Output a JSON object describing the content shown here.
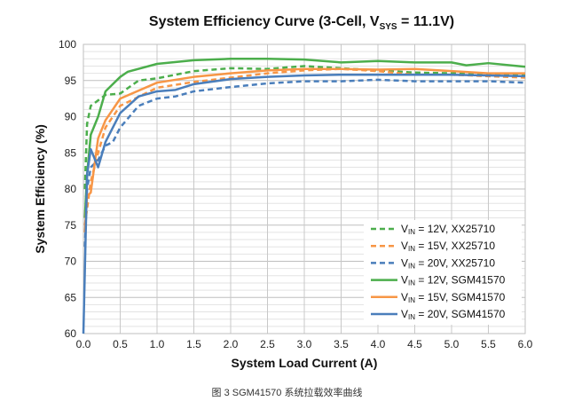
{
  "chart_data": {
    "type": "line",
    "title_main": "System Efficiency Curve (3-Cell, V",
    "title_sub": "SYS",
    "title_tail": " = 11.1V)",
    "xlabel": "System Load Current (A)",
    "ylabel": "System Efficiency (%)",
    "xlim": [
      0,
      6.0
    ],
    "ylim": [
      60,
      100
    ],
    "xticks": [
      "0.0",
      "0.5",
      "1.0",
      "1.5",
      "2.0",
      "2.5",
      "3.0",
      "3.5",
      "4.0",
      "4.5",
      "5.0",
      "5.5",
      "6.0"
    ],
    "yticks": [
      "60",
      "65",
      "70",
      "75",
      "80",
      "85",
      "90",
      "95",
      "100"
    ],
    "grid": true,
    "legend_position": "bottom-right",
    "series": [
      {
        "name_prefix": "V",
        "name_sub": "IN",
        "name_rest": " = 12V, XX25710",
        "color": "#4cae4c",
        "dashed": true,
        "x": [
          0.02,
          0.05,
          0.1,
          0.3,
          0.5,
          0.75,
          1.0,
          1.5,
          2.0,
          2.5,
          3.0,
          3.5,
          4.0,
          4.5,
          5.0,
          5.5,
          6.0
        ],
        "y": [
          80,
          89,
          91.5,
          93,
          93.2,
          95,
          95.3,
          96.3,
          96.7,
          96.6,
          97,
          96.7,
          96.4,
          96.1,
          96,
          95.8,
          95.7
        ]
      },
      {
        "name_prefix": "V",
        "name_sub": "IN",
        "name_rest": " = 15V, XX25710",
        "color": "#f79646",
        "dashed": true,
        "x": [
          0.02,
          0.1,
          0.2,
          0.3,
          0.5,
          1.0,
          1.5,
          2.0,
          2.5,
          3.0,
          3.5,
          4.0,
          4.5,
          5.0,
          5.5,
          6.0
        ],
        "y": [
          75,
          81,
          85,
          88.5,
          91.5,
          94,
          94.8,
          95.4,
          96,
          96.4,
          96.6,
          96.3,
          95.8,
          95.8,
          95.6,
          95.4
        ]
      },
      {
        "name_prefix": "V",
        "name_sub": "IN",
        "name_rest": " = 20V, XX25710",
        "color": "#4a7ebb",
        "dashed": true,
        "x": [
          0.02,
          0.05,
          0.1,
          0.2,
          0.3,
          0.4,
          0.5,
          0.75,
          1.0,
          1.25,
          1.5,
          2.0,
          2.5,
          3.0,
          3.5,
          4.0,
          4.5,
          5.0,
          5.5,
          6.0
        ],
        "y": [
          72,
          80,
          83,
          84,
          86,
          86.5,
          88.5,
          91.5,
          92.5,
          92.8,
          93.5,
          94.1,
          94.6,
          94.9,
          94.9,
          95.1,
          94.9,
          94.9,
          94.9,
          94.7
        ]
      },
      {
        "name_prefix": "V",
        "name_sub": "IN",
        "name_rest": " = 12V, SGM41570",
        "color": "#4cae4c",
        "dashed": false,
        "x": [
          0.02,
          0.05,
          0.1,
          0.2,
          0.3,
          0.5,
          0.6,
          1.0,
          1.5,
          2.0,
          2.5,
          3.0,
          3.5,
          4.0,
          4.5,
          5.0,
          5.2,
          5.5,
          6.0
        ],
        "y": [
          76,
          82,
          87.5,
          90,
          93.5,
          95.5,
          96.2,
          97.3,
          97.8,
          98,
          98,
          97.9,
          97.5,
          97.7,
          97.5,
          97.5,
          97.1,
          97.4,
          96.9
        ]
      },
      {
        "name_prefix": "V",
        "name_sub": "IN",
        "name_rest": " = 15V, SGM41570",
        "color": "#f79646",
        "dashed": false,
        "x": [
          0.02,
          0.05,
          0.1,
          0.2,
          0.3,
          0.5,
          1.0,
          1.5,
          2.0,
          2.5,
          3.0,
          3.5,
          4.0,
          4.5,
          5.0,
          5.5,
          6.0
        ],
        "y": [
          74,
          79,
          79.5,
          87,
          89.5,
          92.5,
          94.7,
          95.5,
          96,
          96.4,
          96.6,
          96.6,
          96.5,
          96.6,
          96.3,
          96,
          96
        ]
      },
      {
        "name_prefix": "V",
        "name_sub": "IN",
        "name_rest": " = 20V, SGM41570",
        "color": "#4a7ebb",
        "dashed": false,
        "x": [
          0,
          0.05,
          0.1,
          0.2,
          0.3,
          0.5,
          0.75,
          1.0,
          1.25,
          1.5,
          2.0,
          2.5,
          3.0,
          3.5,
          4.0,
          5.0,
          6.0
        ],
        "y": [
          60,
          82,
          85.5,
          83,
          86.5,
          90.5,
          92.8,
          93.5,
          93.7,
          94.5,
          95.2,
          95.5,
          95.7,
          95.8,
          95.8,
          95.8,
          95.6
        ]
      }
    ]
  },
  "caption": "图 3 SGM41570 系统拉载效率曲线"
}
